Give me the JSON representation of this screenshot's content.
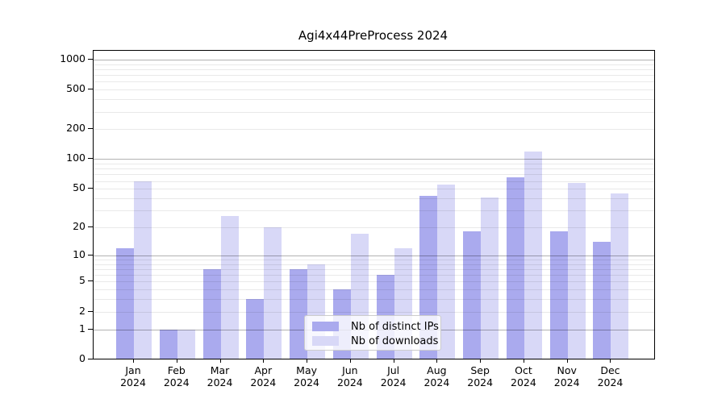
{
  "chart_data": {
    "type": "bar",
    "title": "Agi4x44PreProcess 2024",
    "categories": [
      "Jan 2024",
      "Feb 2024",
      "Mar 2024",
      "Apr 2024",
      "May 2024",
      "Jun 2024",
      "Jul 2024",
      "Aug 2024",
      "Sep 2024",
      "Oct 2024",
      "Nov 2024",
      "Dec 2024"
    ],
    "series": [
      {
        "name": "Nb of distinct IPs",
        "color": "#aaaaee",
        "values": [
          12,
          1,
          7,
          3,
          7,
          4,
          6,
          42,
          18,
          66,
          18,
          14
        ]
      },
      {
        "name": "Nb of downloads",
        "color": "#d8d8f7",
        "values": [
          60,
          1,
          26,
          20,
          8,
          17,
          12,
          55,
          41,
          120,
          57,
          45
        ]
      }
    ],
    "xlabel": "",
    "ylabel": "",
    "yscale": "log1p",
    "yticks": [
      1000,
      500,
      200,
      100,
      50,
      20,
      10,
      5,
      2,
      1,
      0
    ],
    "ylim": [
      0,
      1240
    ],
    "grid": "horizontal; major lines at 1,10,100,1000; minor lines at 2-9 per decade",
    "legend_position": "inside lower-center"
  },
  "colors": {
    "major_grid": "#b0b0b0",
    "minor_grid": "#e8e8e8",
    "axis": "#000000",
    "background": "#ffffff",
    "legend_border": "#cccccc"
  }
}
